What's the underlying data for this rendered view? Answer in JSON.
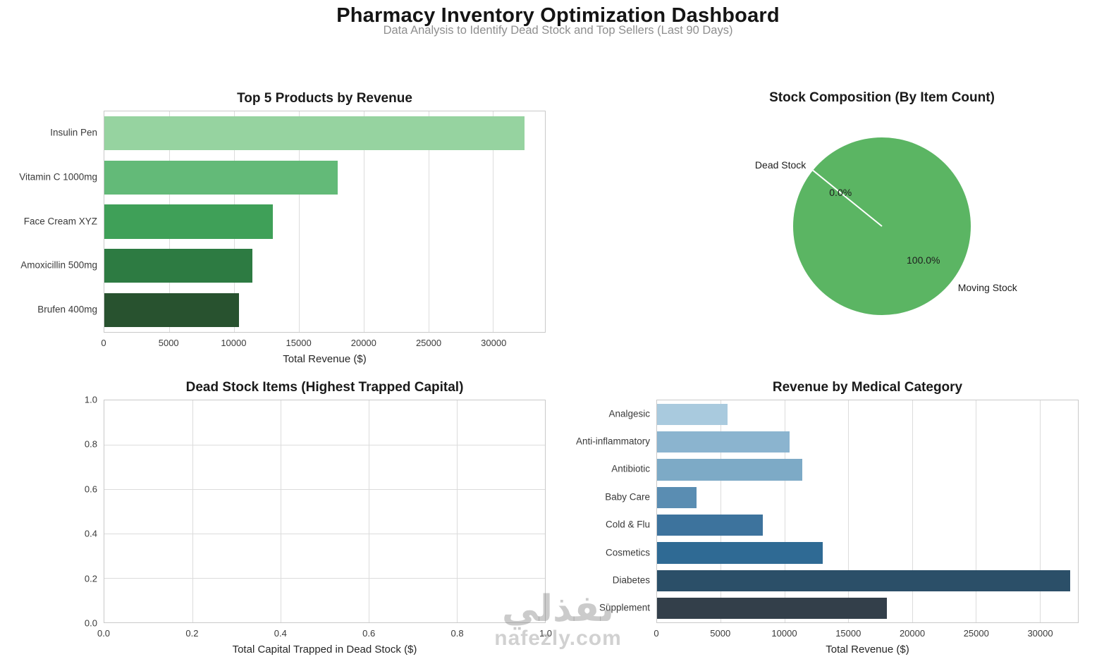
{
  "header": {
    "title": "Pharmacy Inventory Optimization Dashboard",
    "subtitle": "Data Analysis to Identify Dead Stock and Top Sellers (Last 90 Days)"
  },
  "watermark": {
    "text_ar": "نفذلي",
    "text_en": "nafezly.com"
  },
  "chart_data": [
    {
      "type": "bar",
      "orientation": "horizontal",
      "title": "Top 5 Products by Revenue",
      "xlabel": "Total Revenue ($)",
      "categories": [
        "Insulin Pen",
        "Vitamin C 1000mg",
        "Face Cream XYZ",
        "Amoxicillin 500mg",
        "Brufen 400mg"
      ],
      "values": [
        32400,
        18000,
        13000,
        11400,
        10400
      ],
      "bar_colors": [
        "#96d3a0",
        "#63ba78",
        "#3fa058",
        "#2d7b42",
        "#28522f"
      ],
      "xlim": [
        0,
        34000
      ],
      "xticks": [
        0,
        5000,
        10000,
        15000,
        20000,
        25000,
        30000
      ],
      "xtick_labels": [
        "0",
        "5000",
        "10000",
        "15000",
        "20000",
        "25000",
        "30000"
      ],
      "grid": true,
      "legend": false
    },
    {
      "type": "pie",
      "title": "Stock Composition (By Item Count)",
      "slices": [
        {
          "label": "Dead Stock",
          "value": 0.0,
          "pct_label": "0.0%"
        },
        {
          "label": "Moving Stock",
          "value": 100.0,
          "pct_label": "100.0%"
        }
      ],
      "color": "#5bb563",
      "edge_color": "#ffffff",
      "boundary_angle_deg": 141,
      "legend": false
    },
    {
      "type": "bar",
      "orientation": "horizontal",
      "title": "Dead Stock Items (Highest Trapped Capital)",
      "xlabel": "Total Capital Trapped in Dead Stock ($)",
      "categories": [],
      "values": [],
      "xlim": [
        0,
        1
      ],
      "ylim": [
        0,
        1
      ],
      "xticks": [
        0,
        0.2,
        0.4,
        0.6,
        0.8,
        1
      ],
      "xtick_labels": [
        "0.0",
        "0.2",
        "0.4",
        "0.6",
        "0.8",
        "1.0"
      ],
      "yticks": [
        0,
        0.2,
        0.4,
        0.6,
        0.8,
        1
      ],
      "ytick_labels": [
        "0.0",
        "0.2",
        "0.4",
        "0.6",
        "0.8",
        "1.0"
      ],
      "grid": true,
      "legend": false
    },
    {
      "type": "bar",
      "orientation": "horizontal",
      "title": "Revenue by Medical Category",
      "xlabel": "Total Revenue ($)",
      "categories": [
        "Analgesic",
        "Anti-inflammatory",
        "Antibiotic",
        "Baby Care",
        "Cold & Flu",
        "Cosmetics",
        "Diabetes",
        "Supplement"
      ],
      "values": [
        5500,
        10400,
        11400,
        3100,
        8300,
        13000,
        32400,
        18000
      ],
      "bar_colors": [
        "#a9cade",
        "#8bb4cf",
        "#7daac6",
        "#5a8db2",
        "#3d739d",
        "#2f6a94",
        "#2b4f68",
        "#333f4a"
      ],
      "xlim": [
        0,
        33000
      ],
      "xticks": [
        0,
        5000,
        10000,
        15000,
        20000,
        25000,
        30000
      ],
      "xtick_labels": [
        "0",
        "5000",
        "10000",
        "15000",
        "20000",
        "25000",
        "30000"
      ],
      "grid": true,
      "legend": false
    }
  ]
}
